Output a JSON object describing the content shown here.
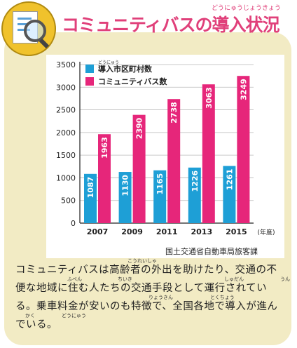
{
  "header": {
    "title": "コミュニティバスの導入状況",
    "title_ruby": "どうにゅうじょうきょう"
  },
  "chart_data": {
    "type": "bar",
    "categories": [
      "2007",
      "2009",
      "2011",
      "2013",
      "2015"
    ],
    "x_unit_label": "(年度)",
    "series": [
      {
        "name": "導入市区町村数",
        "name_ruby": "どうにゅう",
        "color": "#1e9fd6",
        "values": [
          1087,
          1130,
          1165,
          1226,
          1261
        ]
      },
      {
        "name": "コミュニティバス数",
        "color": "#e6267a",
        "values": [
          1963,
          2390,
          2738,
          3063,
          3249
        ]
      }
    ],
    "ylim": [
      0,
      3500
    ],
    "yticks": [
      "0",
      "500",
      "1000",
      "1500",
      "2000",
      "2500",
      "3000",
      "3500"
    ],
    "grid": true,
    "legend_position": "top-left",
    "source": "国土交通省自動車局旅客課"
  },
  "body": {
    "text": "コミュニティバスは高齢者の外出を助けたり、交通の不便な地域に住む人たちの交通手段として運行されている。乗車料金が安いのも特徴で、全国各地で導入が進んでいる。",
    "ruby": [
      "こうれいしゃ",
      "ふべん",
      "ちいき",
      "しゅだん",
      "うん",
      "りょうきん",
      "とくちょう",
      "かく",
      "どうにゅう"
    ]
  },
  "colors": {
    "accent": "#e0407a",
    "panel": "#f2ebc4",
    "badge": "#f0c22c"
  }
}
